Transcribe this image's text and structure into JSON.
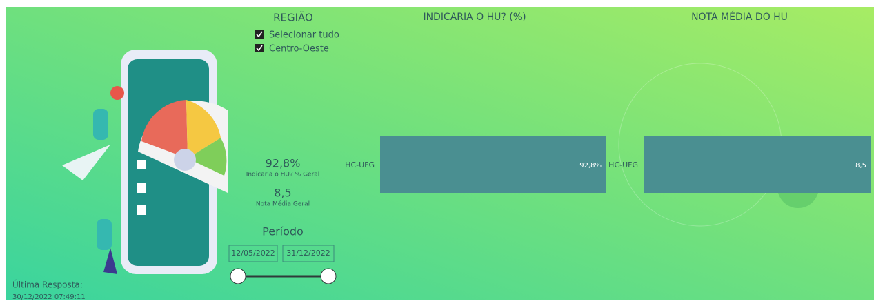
{
  "filter": {
    "title": "REGIÃO",
    "options": [
      "Selecionar tudo",
      "Centro-Oeste"
    ]
  },
  "kpis": [
    {
      "value": "92,8%",
      "label": "Indicaria o HU? % Geral"
    },
    {
      "value": "8,5",
      "label": "Nota Média Geral"
    }
  ],
  "period": {
    "title": "Período",
    "start": "12/05/2022",
    "end": "31/12/2022"
  },
  "last_response": {
    "label": "Última Resposta:",
    "value": "30/12/2022 07:49:11"
  },
  "chart_data": [
    {
      "type": "bar",
      "orientation": "horizontal",
      "title": "INDICARIA O HU? (%)",
      "categories": [
        "HC-UFG"
      ],
      "values": [
        92.8
      ],
      "value_labels": [
        "92,8%"
      ],
      "color": "#4a8f91"
    },
    {
      "type": "bar",
      "orientation": "horizontal",
      "title": "NOTA MÉDIA DO HU",
      "categories": [
        "HC-UFG"
      ],
      "values": [
        8.5
      ],
      "value_labels": [
        "8,5"
      ],
      "color": "#4a8f91"
    }
  ]
}
